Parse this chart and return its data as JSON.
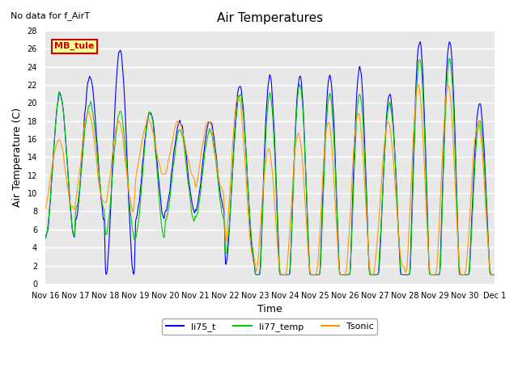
{
  "title": "Air Temperatures",
  "ylabel": "Air Temperature (C)",
  "xlabel": "Time",
  "no_data_text": "No data for f_AirT",
  "mb_tule_label": "MB_tule",
  "ylim": [
    0,
    28
  ],
  "yticks": [
    0,
    2,
    4,
    6,
    8,
    10,
    12,
    14,
    16,
    18,
    20,
    22,
    24,
    26,
    28
  ],
  "x_tick_labels": [
    "Nov 16",
    "Nov 17",
    "Nov 18",
    "Nov 19",
    "Nov 20",
    "Nov 21",
    "Nov 22",
    "Nov 23",
    "Nov 24",
    "Nov 25",
    "Nov 26",
    "Nov 27",
    "Nov 28",
    "Nov 29",
    "Nov 30",
    "Dec 1"
  ],
  "colors": {
    "li75_t": "#0000ff",
    "li77_temp": "#00cc00",
    "Tsonic": "#ff9900",
    "background": "#e8e8e8",
    "grid": "#ffffff",
    "mb_tule_bg": "#ffff99",
    "mb_tule_border": "#cc0000",
    "mb_tule_text": "#cc0000"
  },
  "legend_entries": [
    "li75_t",
    "li77_temp",
    "Tsonic"
  ]
}
